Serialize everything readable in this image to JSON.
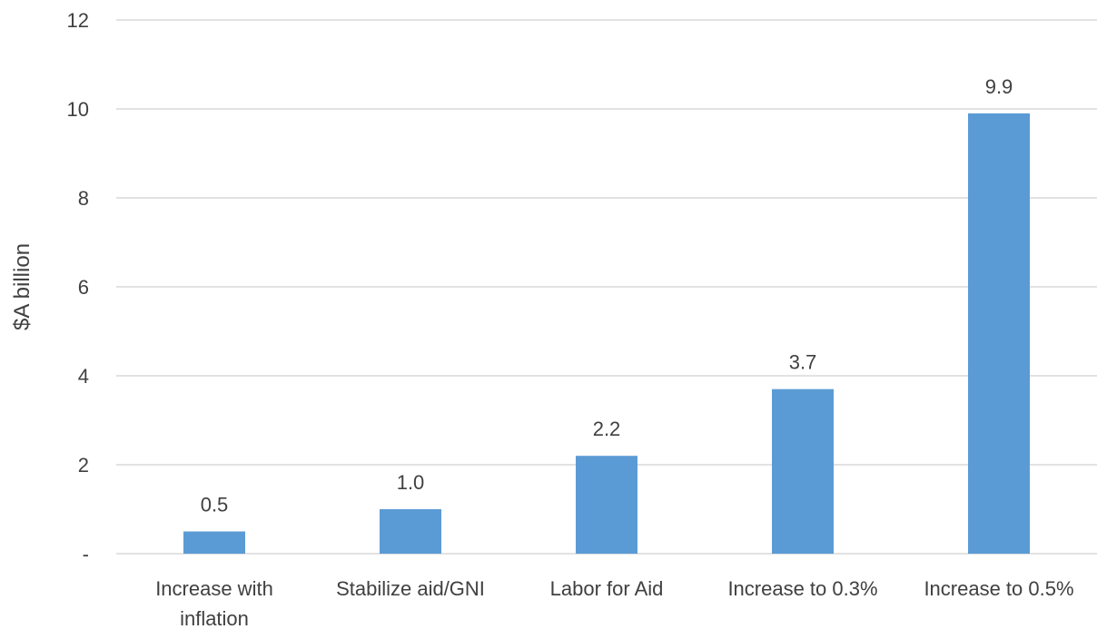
{
  "chart_data": {
    "type": "bar",
    "title": "",
    "xlabel": "",
    "ylabel": "$A billion",
    "ylim": [
      0,
      12
    ],
    "yticks": [
      {
        "value": 0,
        "label": "-"
      },
      {
        "value": 2,
        "label": "2"
      },
      {
        "value": 4,
        "label": "4"
      },
      {
        "value": 6,
        "label": "6"
      },
      {
        "value": 8,
        "label": "8"
      },
      {
        "value": 10,
        "label": "10"
      },
      {
        "value": 12,
        "label": "12"
      }
    ],
    "categories": [
      [
        "Increase with",
        "inflation"
      ],
      [
        "Stabilize aid/GNI"
      ],
      [
        "Labor for Aid"
      ],
      [
        "Increase to 0.3%"
      ],
      [
        "Increase to 0.5%"
      ]
    ],
    "values": [
      0.5,
      1.0,
      2.2,
      3.7,
      9.9
    ],
    "data_labels": [
      "0.5",
      "1.0",
      "2.2",
      "3.7",
      "9.9"
    ],
    "grid": true,
    "legend": "none",
    "colors": {
      "bar": "#5b9bd5",
      "grid": "#d9d9d9",
      "axis_line": "#d9d9d9",
      "text": "#404040"
    }
  }
}
